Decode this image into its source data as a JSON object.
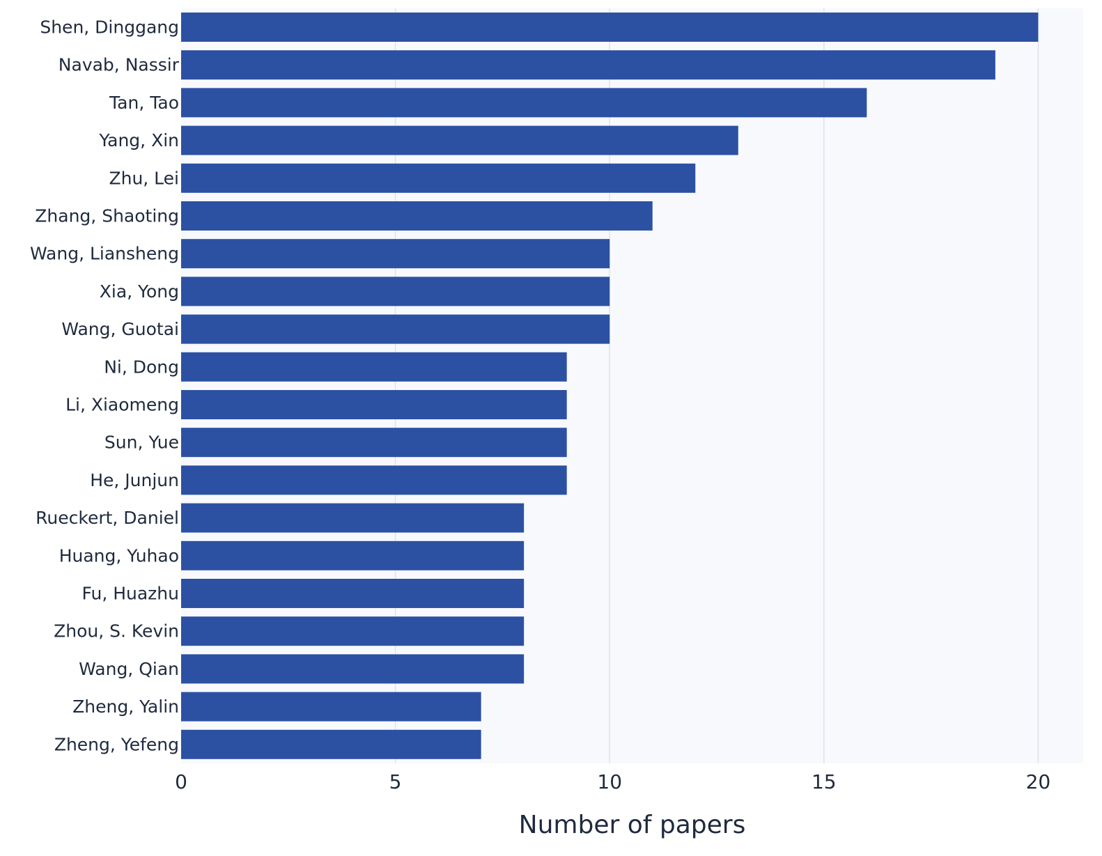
{
  "chart_data": {
    "type": "bar",
    "orientation": "horizontal",
    "title": "",
    "xlabel": "Number of papers",
    "ylabel": "",
    "xlim": [
      0,
      21.05
    ],
    "x_ticks": [
      0,
      5,
      10,
      15,
      20
    ],
    "grid": "vertical",
    "colors": {
      "bar": "#2c51a3",
      "plot_background": "#f8f9fc",
      "grid": "#dde3ee",
      "text": "#1f2a3d"
    },
    "categories": [
      "Shen, Dinggang",
      "Navab, Nassir",
      "Tan, Tao",
      "Yang, Xin",
      "Zhu, Lei",
      "Zhang, Shaoting",
      "Wang, Liansheng",
      "Xia, Yong",
      "Wang, Guotai",
      "Ni, Dong",
      "Li, Xiaomeng",
      "Sun, Yue",
      "He, Junjun",
      "Rueckert, Daniel",
      "Huang, Yuhao",
      "Fu, Huazhu",
      "Zhou, S. Kevin",
      "Wang, Qian",
      "Zheng, Yalin",
      "Zheng, Yefeng"
    ],
    "values": [
      20,
      19,
      16,
      13,
      12,
      11,
      10,
      10,
      10,
      9,
      9,
      9,
      9,
      8,
      8,
      8,
      8,
      8,
      7,
      7
    ]
  }
}
